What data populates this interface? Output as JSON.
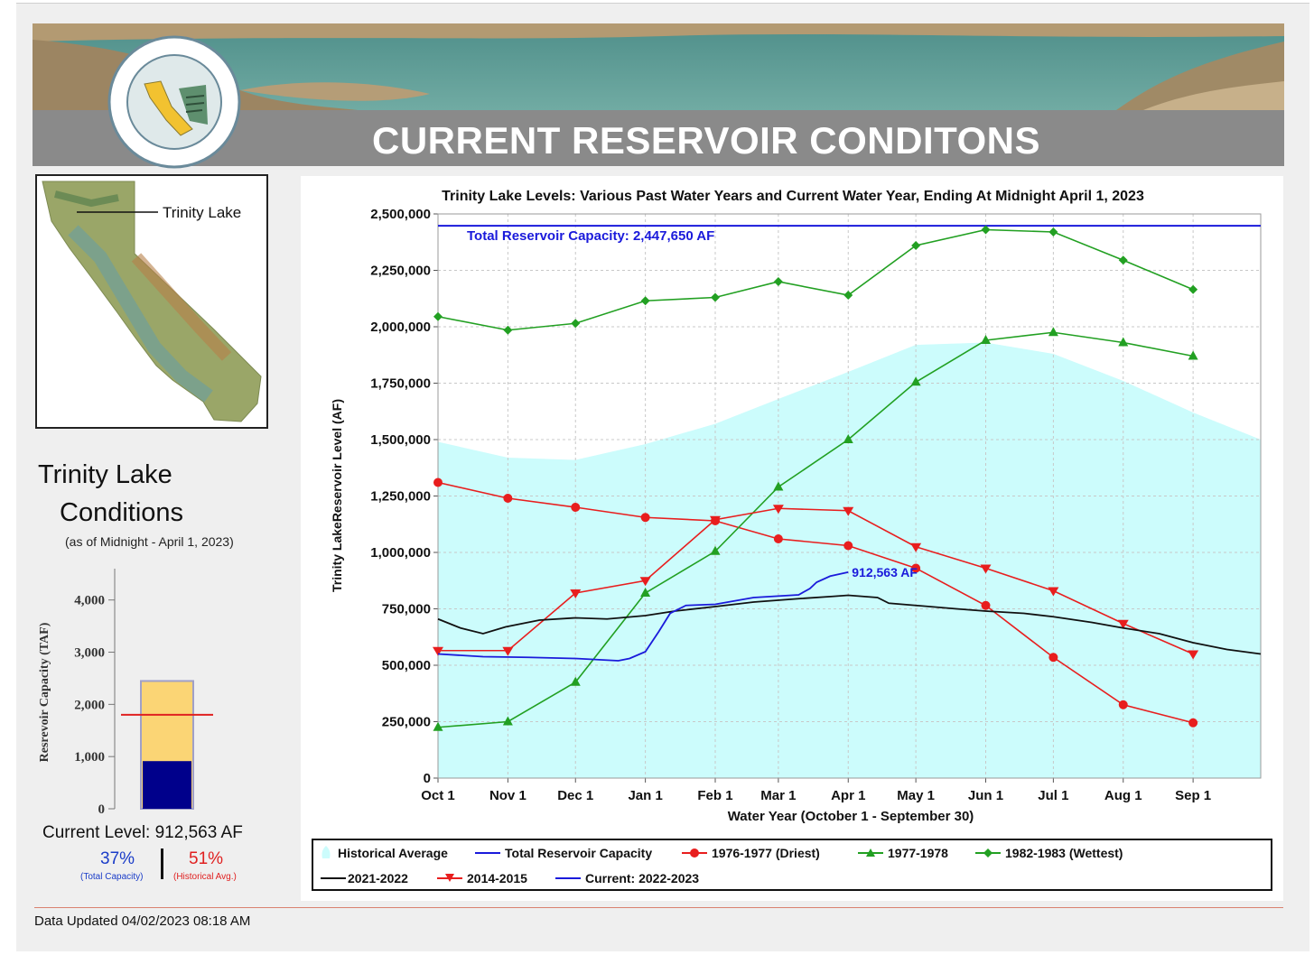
{
  "banner": {
    "title": "CURRENT RESERVOIR CONDITONS"
  },
  "map": {
    "label": "Trinity Lake"
  },
  "conditions": {
    "title_line1": "Trinity Lake",
    "title_line2": "Conditions",
    "as_of": "(as of Midnight - April 1, 2023)",
    "current_level": "Current Level: 912,563 AF",
    "pct_total": "37%",
    "pct_total_label": "(Total Capacity)",
    "pct_hist": "51%",
    "pct_hist_label": "(Historical Avg.)"
  },
  "gauge": {
    "ylabel": "Resrevoir Capacity (TAF)",
    "ticks": [
      "0",
      "1,000",
      "2,000",
      "3,000",
      "4,000"
    ],
    "ymax": 4600,
    "capacity_taf": 2448,
    "current_taf": 913,
    "hist_avg_taf": 1800,
    "colors": {
      "capacity": "#fbd575",
      "current": "#00008b",
      "hist": "#e02020"
    }
  },
  "footer": {
    "updated": "Data Updated 04/02/2023 08:18 AM"
  },
  "chart_data": {
    "type": "line",
    "title": "Trinity Lake Levels: Various Past Water Years and Current Water Year, Ending At Midnight April 1, 2023",
    "xlabel": "Water Year (October 1 - September 30)",
    "ylabel": "Trinity LakeReservoir Level (AF)",
    "ylim": [
      0,
      2500000
    ],
    "yticks": [
      0,
      250000,
      500000,
      750000,
      1000000,
      1250000,
      1500000,
      1750000,
      2000000,
      2250000,
      2500000
    ],
    "ytick_labels": [
      "0",
      "250,000",
      "500,000",
      "750,000",
      "1,000,000",
      "1,250,000",
      "1,500,000",
      "1,750,000",
      "2,000,000",
      "2,250,000",
      "2,500,000"
    ],
    "xlim": [
      0,
      365
    ],
    "categories": [
      "Oct 1",
      "Nov 1",
      "Dec 1",
      "Jan 1",
      "Feb 1",
      "Mar 1",
      "Apr 1",
      "May 1",
      "Jun 1",
      "Jul 1",
      "Aug 1",
      "Sep 1"
    ],
    "category_days": [
      0,
      31,
      61,
      92,
      123,
      151,
      182,
      212,
      243,
      273,
      304,
      335
    ],
    "capacity": {
      "value": 2447650,
      "label": "Total Reservoir Capacity: 2,447,650 AF",
      "color": "#1a1adb"
    },
    "current_annotation": "912,563 AF",
    "historical_average": {
      "name": "Historical Average",
      "color": "#ccfcfc",
      "x": [
        0,
        31,
        61,
        92,
        123,
        151,
        182,
        212,
        243,
        273,
        304,
        335,
        365
      ],
      "values": [
        1490000,
        1420000,
        1410000,
        1480000,
        1570000,
        1680000,
        1800000,
        1920000,
        1930000,
        1880000,
        1760000,
        1620000,
        1500000
      ]
    },
    "series": [
      {
        "name": "1976-1977 (Driest)",
        "color": "#e81e1e",
        "marker": "circle",
        "values": [
          1310000,
          1240000,
          1200000,
          1155000,
          1140000,
          1060000,
          1030000,
          930000,
          765000,
          535000,
          325000,
          245000
        ]
      },
      {
        "name": "1977-1978",
        "color": "#22a022",
        "marker": "triangle",
        "values": [
          225000,
          250000,
          425000,
          820000,
          1005000,
          1290000,
          1500000,
          1755000,
          1940000,
          1975000,
          1930000,
          1870000
        ]
      },
      {
        "name": "1982-1983 (Wettest)",
        "color": "#22a022",
        "marker": "diamond",
        "values": [
          2045000,
          1985000,
          2015000,
          2115000,
          2130000,
          2200000,
          2140000,
          2360000,
          2430000,
          2420000,
          2295000,
          2165000
        ]
      },
      {
        "name": "2014-2015",
        "color": "#e81e1e",
        "marker": "triangle-down",
        "values": [
          565000,
          565000,
          820000,
          875000,
          1145000,
          1195000,
          1185000,
          1025000,
          930000,
          830000,
          685000,
          550000
        ]
      },
      {
        "name": "2021-2022",
        "color": "#111111",
        "marker": "none",
        "x": [
          0,
          10,
          20,
          30,
          45,
          61,
          75,
          92,
          105,
          123,
          140,
          160,
          175,
          182,
          195,
          200,
          212,
          230,
          243,
          260,
          273,
          290,
          304,
          320,
          335,
          350,
          365
        ],
        "values": [
          705000,
          665000,
          640000,
          670000,
          700000,
          710000,
          705000,
          720000,
          740000,
          760000,
          780000,
          795000,
          805000,
          810000,
          800000,
          775000,
          765000,
          750000,
          740000,
          730000,
          715000,
          690000,
          665000,
          640000,
          600000,
          570000,
          550000
        ]
      },
      {
        "name": "Current: 2022-2023",
        "color": "#1a1adb",
        "marker": "none",
        "x": [
          0,
          20,
          40,
          61,
          80,
          85,
          92,
          98,
          103,
          110,
          123,
          140,
          160,
          165,
          168,
          174,
          182
        ],
        "values": [
          550000,
          538000,
          535000,
          530000,
          520000,
          530000,
          560000,
          650000,
          730000,
          765000,
          770000,
          800000,
          812000,
          840000,
          868000,
          895000,
          912563
        ]
      }
    ],
    "legend": [
      {
        "name": "Historical Average"
      },
      {
        "name": "Total Reservoir Capacity"
      },
      {
        "name": "1976-1977 (Driest)"
      },
      {
        "name": "1977-1978"
      },
      {
        "name": "1982-1983 (Wettest)"
      },
      {
        "name": "2021-2022"
      },
      {
        "name": "2014-2015"
      },
      {
        "name": "Current: 2022-2023"
      }
    ]
  }
}
